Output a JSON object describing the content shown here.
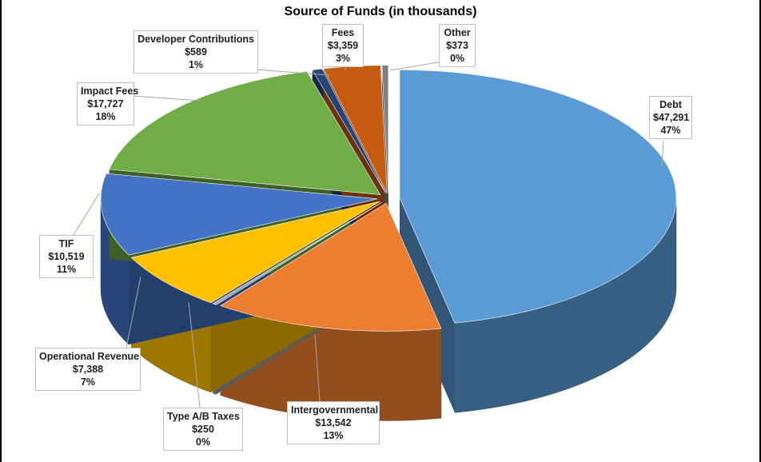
{
  "chart_data": {
    "type": "pie",
    "title": "Source of Funds (in thousands)",
    "slices": [
      {
        "label": "Debt",
        "value_text": "$47,291",
        "pct_text": "47%",
        "value": 47291,
        "color": "#5b9bd5"
      },
      {
        "label": "Intergovernmental",
        "value_text": "$13,542",
        "pct_text": "13%",
        "value": 13542,
        "color": "#ed7d31"
      },
      {
        "label": "Type A/B Taxes",
        "value_text": "$250",
        "pct_text": "0%",
        "value": 250,
        "color": "#a5a5a5"
      },
      {
        "label": "Operational Revenue",
        "value_text": "$7,388",
        "pct_text": "7%",
        "value": 7388,
        "color": "#ffc000"
      },
      {
        "label": "TIF",
        "value_text": "$10,519",
        "pct_text": "11%",
        "value": 10519,
        "color": "#4472c4"
      },
      {
        "label": "Impact Fees",
        "value_text": "$17,727",
        "pct_text": "18%",
        "value": 17727,
        "color": "#70ad47"
      },
      {
        "label": "Developer Contributions",
        "value_text": "$589",
        "pct_text": "1%",
        "value": 589,
        "color": "#264478"
      },
      {
        "label": "Fees",
        "value_text": "$3,359",
        "pct_text": "3%",
        "value": 3359,
        "color": "#c55a11"
      },
      {
        "label": "Other",
        "value_text": "$373",
        "pct_text": "0%",
        "value": 373,
        "color": "#7f7f7f"
      }
    ]
  }
}
